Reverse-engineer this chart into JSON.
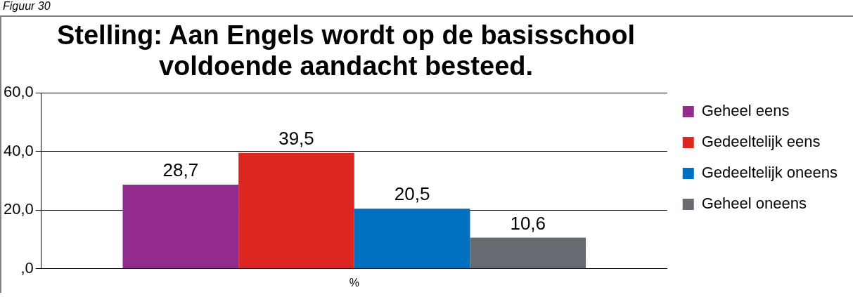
{
  "chart_data": {
    "type": "bar",
    "title": "Stelling: Aan Engels wordt op de basisschool voldoende aandacht besteed.",
    "annotations": [
      "Figuur 30"
    ],
    "categories": [
      "%"
    ],
    "series": [
      {
        "name": "Geheel eens",
        "color": "#922b8c",
        "values": [
          28.7
        ],
        "value_labels": [
          "28,7"
        ]
      },
      {
        "name": "Gedeeltelijk eens",
        "color": "#dc2621",
        "values": [
          39.5
        ],
        "value_labels": [
          "39,5"
        ]
      },
      {
        "name": "Gedeeltelijk oneens",
        "color": "#0070c0",
        "values": [
          20.5
        ],
        "value_labels": [
          "20,5"
        ]
      },
      {
        "name": "Geheel oneens",
        "color": "#676a71",
        "values": [
          10.6
        ],
        "value_labels": [
          "10,6"
        ]
      }
    ],
    "ylim": [
      0,
      60
    ],
    "yticks": [
      {
        "value": 0,
        "label": ",0"
      },
      {
        "value": 20,
        "label": "20,0"
      },
      {
        "value": 40,
        "label": "40,0"
      },
      {
        "value": 60,
        "label": "60,0"
      }
    ],
    "grid": "y",
    "legend": "right"
  }
}
